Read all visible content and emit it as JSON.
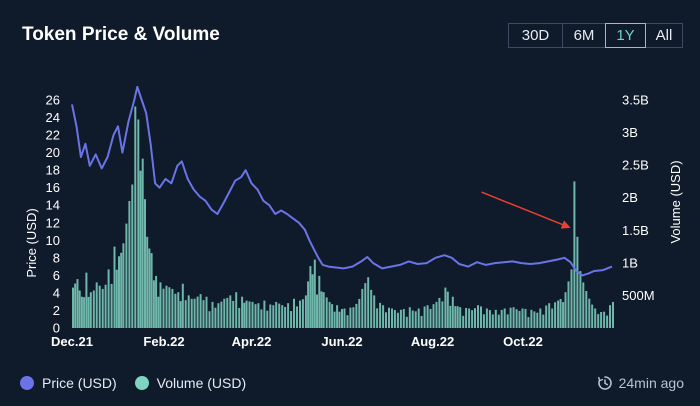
{
  "header": {
    "title": "Token Price & Volume",
    "ranges": [
      {
        "label": "30D",
        "active": false
      },
      {
        "label": "6M",
        "active": false
      },
      {
        "label": "1Y",
        "active": true
      },
      {
        "label": "All",
        "active": false
      }
    ]
  },
  "legend": {
    "price_label": "Price (USD)",
    "volume_label": "Volume (USD)"
  },
  "status": {
    "updated": "24min ago"
  },
  "colors": {
    "price": "#6b74e6",
    "volume": "#7fd4c1",
    "annotation": "#e8412f",
    "background": "#0f1a2b"
  },
  "chart_data": {
    "type": "line",
    "x_axis": {
      "type": "date",
      "range": [
        "2021-12-01",
        "2022-11-30"
      ],
      "tick_labels": [
        "Dec.21",
        "Feb.22",
        "Apr.22",
        "Jun.22",
        "Aug.22",
        "Oct.22"
      ]
    },
    "y_axis_left": {
      "label": "Price (USD)",
      "range": [
        0,
        26
      ],
      "tick_labels": [
        "0",
        "2",
        "4",
        "6",
        "8",
        "10",
        "12",
        "14",
        "16",
        "18",
        "20",
        "22",
        "24",
        "26"
      ]
    },
    "y_axis_right": {
      "label": "Volume (USD)",
      "range": [
        0,
        3.5
      ],
      "unit": "B",
      "tick_labels": [
        "500M",
        "1B",
        "1.5B",
        "2B",
        "2.5B",
        "3B",
        "3.5B"
      ]
    },
    "grid": false,
    "legend_position": "bottom-left",
    "series": [
      {
        "name": "Price (USD)",
        "type": "line",
        "axis": "left",
        "points": [
          [
            "2021-12-01",
            25.5
          ],
          [
            "2021-12-04",
            23.0
          ],
          [
            "2021-12-07",
            19.5
          ],
          [
            "2021-12-10",
            21.0
          ],
          [
            "2021-12-13",
            18.5
          ],
          [
            "2021-12-17",
            19.8
          ],
          [
            "2021-12-21",
            18.2
          ],
          [
            "2021-12-25",
            19.5
          ],
          [
            "2021-12-29",
            22.0
          ],
          [
            "2022-01-01",
            23.0
          ],
          [
            "2022-01-04",
            20.0
          ],
          [
            "2022-01-08",
            23.5
          ],
          [
            "2022-01-12",
            26.0
          ],
          [
            "2022-01-14",
            27.5
          ],
          [
            "2022-01-17",
            26.0
          ],
          [
            "2022-01-20",
            24.5
          ],
          [
            "2022-01-23",
            21.0
          ],
          [
            "2022-01-26",
            16.5
          ],
          [
            "2022-01-29",
            16.0
          ],
          [
            "2022-02-02",
            17.0
          ],
          [
            "2022-02-06",
            16.5
          ],
          [
            "2022-02-10",
            18.5
          ],
          [
            "2022-02-13",
            19.0
          ],
          [
            "2022-02-17",
            17.0
          ],
          [
            "2022-02-21",
            15.8
          ],
          [
            "2022-02-25",
            15.0
          ],
          [
            "2022-03-01",
            14.5
          ],
          [
            "2022-03-05",
            13.5
          ],
          [
            "2022-03-09",
            13.0
          ],
          [
            "2022-03-13",
            14.2
          ],
          [
            "2022-03-17",
            15.5
          ],
          [
            "2022-03-21",
            16.8
          ],
          [
            "2022-03-25",
            17.2
          ],
          [
            "2022-03-28",
            18.0
          ],
          [
            "2022-04-01",
            16.5
          ],
          [
            "2022-04-05",
            15.8
          ],
          [
            "2022-04-09",
            14.5
          ],
          [
            "2022-04-13",
            14.0
          ],
          [
            "2022-04-17",
            13.0
          ],
          [
            "2022-04-21",
            13.4
          ],
          [
            "2022-04-25",
            13.0
          ],
          [
            "2022-04-29",
            12.5
          ],
          [
            "2022-05-03",
            12.0
          ],
          [
            "2022-05-07",
            11.2
          ],
          [
            "2022-05-10",
            10.0
          ],
          [
            "2022-05-13",
            9.0
          ],
          [
            "2022-05-16",
            8.0
          ],
          [
            "2022-05-19",
            7.2
          ],
          [
            "2022-05-23",
            7.0
          ],
          [
            "2022-05-28",
            6.9
          ],
          [
            "2022-06-02",
            6.8
          ],
          [
            "2022-06-08",
            7.0
          ],
          [
            "2022-06-14",
            7.6
          ],
          [
            "2022-06-18",
            8.1
          ],
          [
            "2022-06-22",
            7.4
          ],
          [
            "2022-06-28",
            6.8
          ],
          [
            "2022-07-04",
            7.0
          ],
          [
            "2022-07-10",
            7.2
          ],
          [
            "2022-07-16",
            7.6
          ],
          [
            "2022-07-22",
            7.3
          ],
          [
            "2022-07-28",
            7.4
          ],
          [
            "2022-08-03",
            8.0
          ],
          [
            "2022-08-09",
            8.3
          ],
          [
            "2022-08-14",
            8.0
          ],
          [
            "2022-08-19",
            7.3
          ],
          [
            "2022-08-25",
            7.0
          ],
          [
            "2022-08-31",
            7.5
          ],
          [
            "2022-09-06",
            7.2
          ],
          [
            "2022-09-12",
            7.4
          ],
          [
            "2022-09-18",
            7.5
          ],
          [
            "2022-09-24",
            7.6
          ],
          [
            "2022-09-30",
            7.4
          ],
          [
            "2022-10-06",
            7.3
          ],
          [
            "2022-10-12",
            7.4
          ],
          [
            "2022-10-18",
            7.6
          ],
          [
            "2022-10-24",
            7.8
          ],
          [
            "2022-10-29",
            8.0
          ],
          [
            "2022-11-02",
            7.5
          ],
          [
            "2022-11-06",
            6.5
          ],
          [
            "2022-11-10",
            6.0
          ],
          [
            "2022-11-14",
            6.2
          ],
          [
            "2022-11-18",
            6.5
          ],
          [
            "2022-11-24",
            6.6
          ],
          [
            "2022-11-30",
            7.0
          ]
        ]
      },
      {
        "name": "Volume (USD)",
        "type": "bar",
        "axis": "right",
        "unit": "B",
        "points": [
          [
            "2021-12-01",
            0.62
          ],
          [
            "2021-12-04",
            0.75
          ],
          [
            "2021-12-07",
            0.48
          ],
          [
            "2021-12-10",
            0.85
          ],
          [
            "2021-12-13",
            0.55
          ],
          [
            "2021-12-17",
            0.7
          ],
          [
            "2021-12-21",
            0.6
          ],
          [
            "2021-12-25",
            0.9
          ],
          [
            "2021-12-29",
            1.25
          ],
          [
            "2022-01-01",
            1.1
          ],
          [
            "2022-01-04",
            1.3
          ],
          [
            "2022-01-08",
            1.95
          ],
          [
            "2022-01-12",
            3.4
          ],
          [
            "2022-01-14",
            3.2
          ],
          [
            "2022-01-17",
            2.6
          ],
          [
            "2022-01-20",
            1.4
          ],
          [
            "2022-01-23",
            1.15
          ],
          [
            "2022-01-26",
            0.8
          ],
          [
            "2022-01-29",
            0.7
          ],
          [
            "2022-02-02",
            0.65
          ],
          [
            "2022-02-06",
            0.6
          ],
          [
            "2022-02-10",
            0.55
          ],
          [
            "2022-02-13",
            0.68
          ],
          [
            "2022-02-17",
            0.5
          ],
          [
            "2022-02-21",
            0.45
          ],
          [
            "2022-02-25",
            0.52
          ],
          [
            "2022-03-01",
            0.48
          ],
          [
            "2022-03-05",
            0.4
          ],
          [
            "2022-03-09",
            0.38
          ],
          [
            "2022-03-13",
            0.45
          ],
          [
            "2022-03-17",
            0.5
          ],
          [
            "2022-03-21",
            0.55
          ],
          [
            "2022-03-25",
            0.48
          ],
          [
            "2022-03-28",
            0.42
          ],
          [
            "2022-04-01",
            0.4
          ],
          [
            "2022-04-05",
            0.38
          ],
          [
            "2022-04-09",
            0.42
          ],
          [
            "2022-04-13",
            0.36
          ],
          [
            "2022-04-17",
            0.4
          ],
          [
            "2022-04-21",
            0.35
          ],
          [
            "2022-04-25",
            0.38
          ],
          [
            "2022-04-29",
            0.45
          ],
          [
            "2022-05-03",
            0.42
          ],
          [
            "2022-05-07",
            0.5
          ],
          [
            "2022-05-10",
            0.95
          ],
          [
            "2022-05-13",
            1.05
          ],
          [
            "2022-05-16",
            0.8
          ],
          [
            "2022-05-19",
            0.55
          ],
          [
            "2022-05-23",
            0.4
          ],
          [
            "2022-05-28",
            0.35
          ],
          [
            "2022-06-02",
            0.3
          ],
          [
            "2022-06-08",
            0.32
          ],
          [
            "2022-06-14",
            0.6
          ],
          [
            "2022-06-18",
            0.78
          ],
          [
            "2022-06-22",
            0.5
          ],
          [
            "2022-06-28",
            0.35
          ],
          [
            "2022-07-04",
            0.3
          ],
          [
            "2022-07-10",
            0.28
          ],
          [
            "2022-07-16",
            0.32
          ],
          [
            "2022-07-22",
            0.3
          ],
          [
            "2022-07-28",
            0.35
          ],
          [
            "2022-08-03",
            0.4
          ],
          [
            "2022-08-09",
            0.62
          ],
          [
            "2022-08-14",
            0.48
          ],
          [
            "2022-08-19",
            0.32
          ],
          [
            "2022-08-25",
            0.3
          ],
          [
            "2022-08-31",
            0.35
          ],
          [
            "2022-09-06",
            0.3
          ],
          [
            "2022-09-12",
            0.28
          ],
          [
            "2022-09-18",
            0.3
          ],
          [
            "2022-09-24",
            0.32
          ],
          [
            "2022-09-30",
            0.3
          ],
          [
            "2022-10-06",
            0.28
          ],
          [
            "2022-10-12",
            0.3
          ],
          [
            "2022-10-18",
            0.38
          ],
          [
            "2022-10-24",
            0.42
          ],
          [
            "2022-10-29",
            0.55
          ],
          [
            "2022-11-02",
            0.9
          ],
          [
            "2022-11-04",
            2.25
          ],
          [
            "2022-11-06",
            1.4
          ],
          [
            "2022-11-10",
            0.7
          ],
          [
            "2022-11-14",
            0.45
          ],
          [
            "2022-11-18",
            0.3
          ],
          [
            "2022-11-24",
            0.25
          ],
          [
            "2022-11-30",
            0.4
          ]
        ]
      }
    ],
    "annotations": [
      {
        "type": "arrow",
        "color": "#e8412f",
        "from": [
          "2022-09-03",
          15.5
        ],
        "to": [
          "2022-11-01",
          11.5
        ]
      }
    ]
  }
}
